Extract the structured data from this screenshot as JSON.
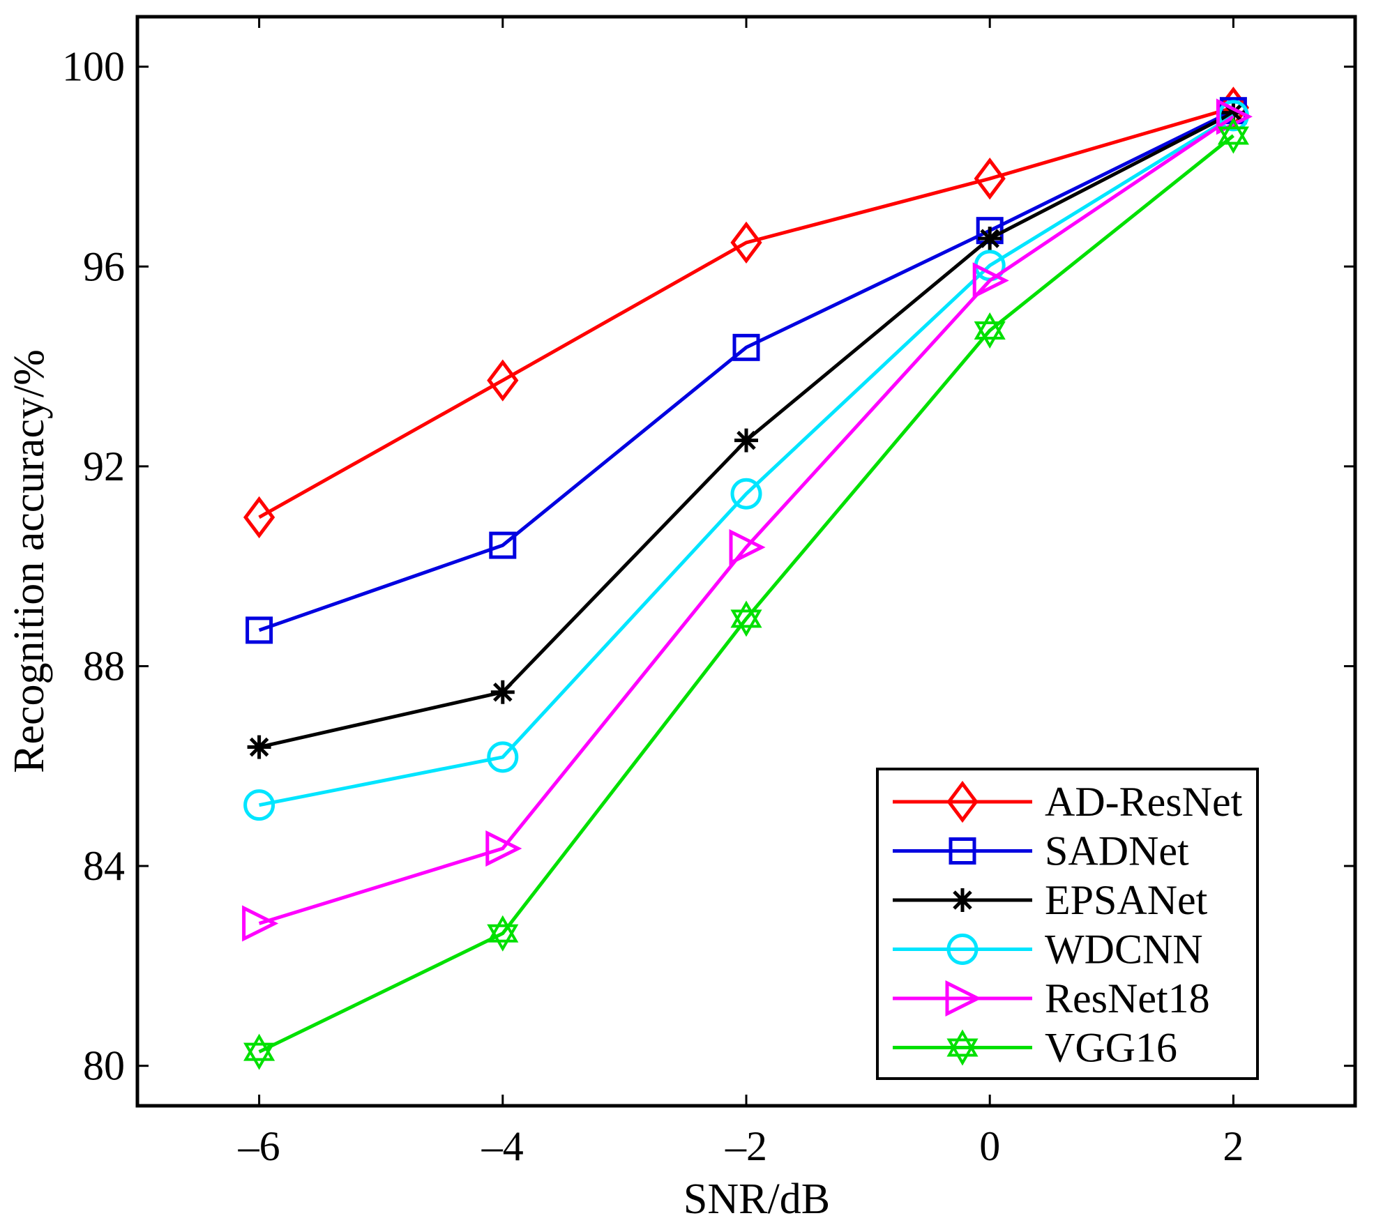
{
  "chart_data": {
    "type": "line",
    "title": "",
    "xlabel": "SNR/dB",
    "ylabel": "Recognition accuracy/%",
    "x": [
      -6,
      -4,
      -2,
      0,
      2
    ],
    "x_tick_labels": [
      "–6",
      "–4",
      "–2",
      "0",
      "2"
    ],
    "y_ticks": [
      80,
      84,
      88,
      92,
      96,
      100
    ],
    "y_tick_labels": [
      "80",
      "84",
      "88",
      "92",
      "96",
      "100"
    ],
    "xlim": [
      -7,
      3
    ],
    "ylim": [
      79.2,
      101
    ],
    "legend_position": "bottom-right",
    "series": [
      {
        "name": "AD-ResNet",
        "color": "#ff0000",
        "marker": "diamond",
        "values": [
          90.98,
          93.72,
          96.48,
          97.76,
          99.18
        ]
      },
      {
        "name": "SADNet",
        "color": "#0000e0",
        "marker": "square",
        "values": [
          88.72,
          90.42,
          94.38,
          96.72,
          99.12
        ]
      },
      {
        "name": "EPSANet",
        "color": "#000000",
        "marker": "asterisk",
        "values": [
          86.38,
          87.48,
          92.52,
          96.56,
          99.08
        ]
      },
      {
        "name": "WDCNN",
        "color": "#00e5ff",
        "marker": "circle",
        "values": [
          85.22,
          86.18,
          91.45,
          96.02,
          99.02
        ]
      },
      {
        "name": "ResNet18",
        "color": "#ff00ff",
        "marker": "triangle-right",
        "values": [
          82.85,
          84.35,
          90.38,
          95.72,
          99.0
        ]
      },
      {
        "name": "VGG16",
        "color": "#00e000",
        "marker": "hexagram",
        "values": [
          80.28,
          82.65,
          88.95,
          94.72,
          98.62
        ]
      }
    ]
  }
}
